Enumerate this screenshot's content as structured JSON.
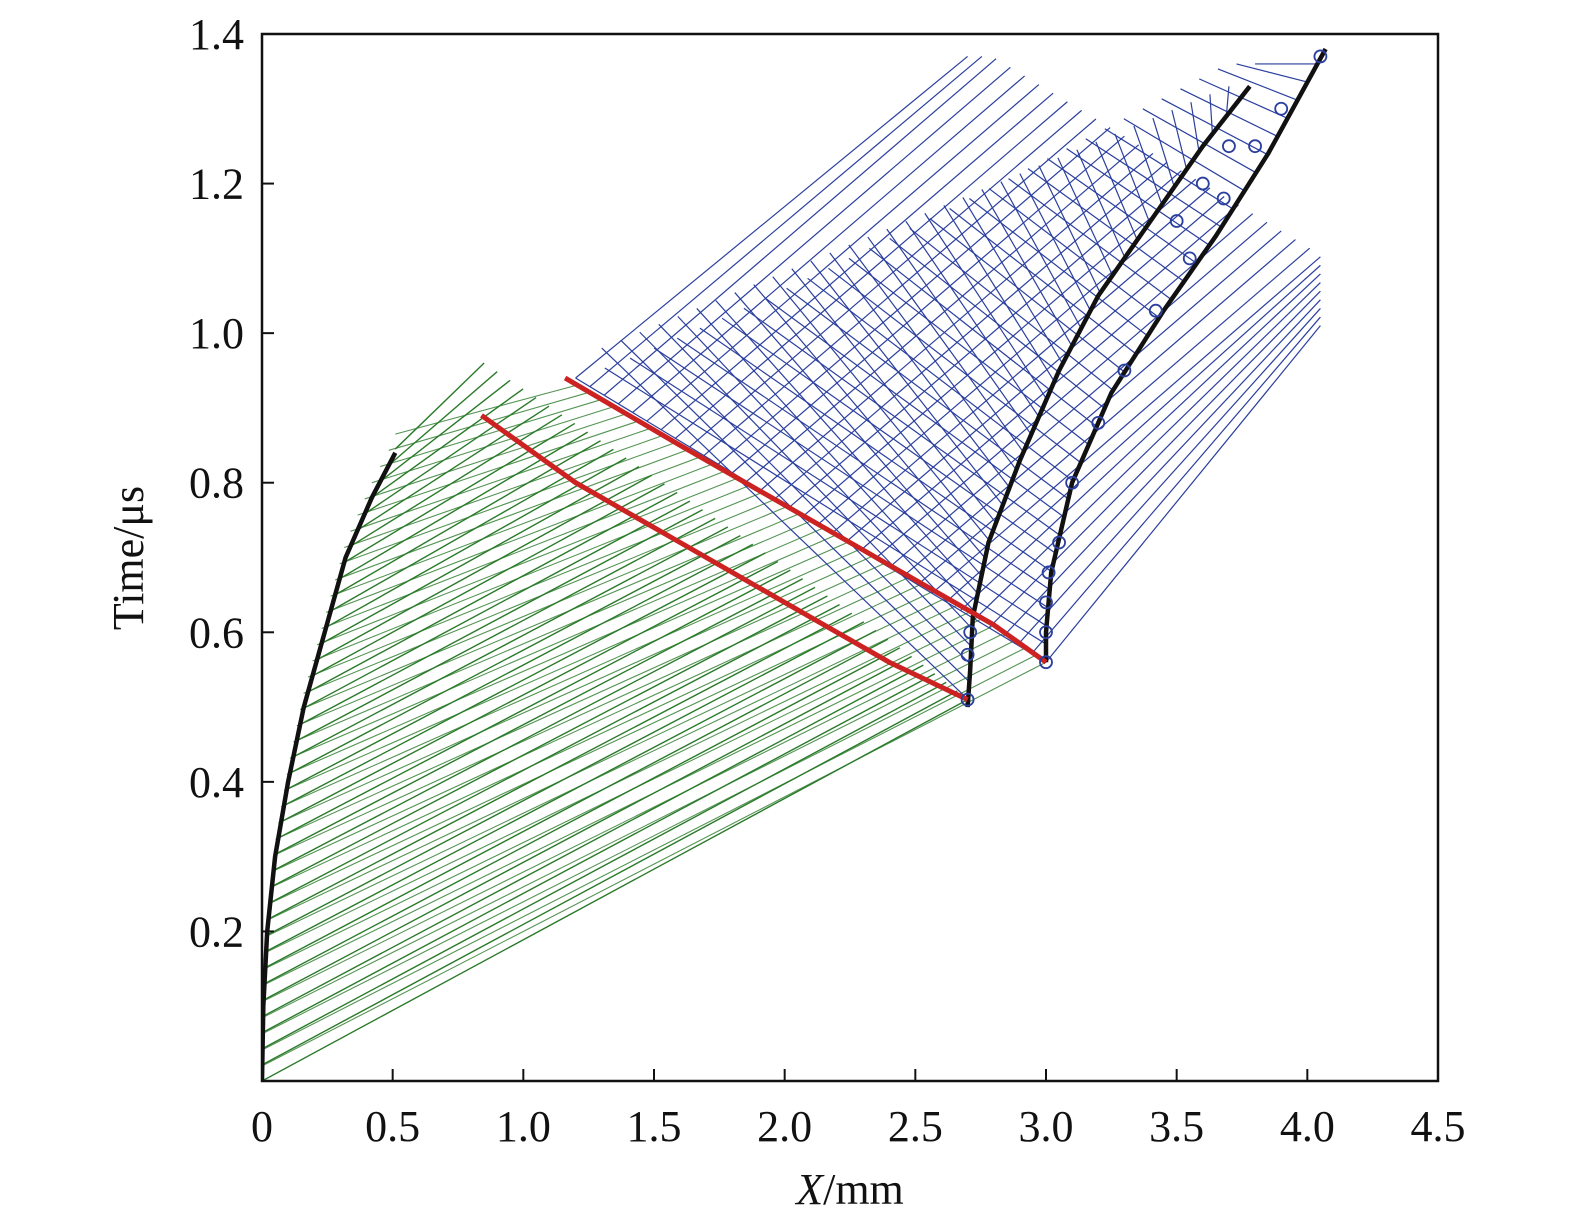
{
  "chart_data": {
    "type": "line",
    "title": "",
    "xlabel_italic": "X",
    "xlabel_rest": "/mm",
    "ylabel": "Time/μs",
    "xlim": [
      0,
      4.5
    ],
    "ylim": [
      0,
      1.4
    ],
    "xticks": [
      0,
      0.5,
      1.0,
      1.5,
      2.0,
      2.5,
      3.0,
      3.5,
      4.0,
      4.5
    ],
    "xtick_labels": [
      "0",
      "0.5",
      "1.0",
      "1.5",
      "2.0",
      "2.5",
      "3.0",
      "3.5",
      "4.0",
      "4.5"
    ],
    "yticks": [
      0.2,
      0.4,
      0.6,
      0.8,
      1.0,
      1.2,
      1.4
    ],
    "ytick_labels": [
      "0.2",
      "0.4",
      "0.6",
      "0.8",
      "1.0",
      "1.2",
      "1.4"
    ],
    "grid": false,
    "colors": {
      "boundary": "#111111",
      "interface": "#cc2222",
      "characteristics_1": "#2a7a2a",
      "characteristics_2": "#2b3f9e",
      "marker": "#2b3f9e"
    },
    "series": [
      {
        "role": "boundary",
        "points": [
          [
            0.0,
            0.0
          ],
          [
            0.005,
            0.1
          ],
          [
            0.02,
            0.2
          ],
          [
            0.05,
            0.3
          ],
          [
            0.1,
            0.4
          ],
          [
            0.16,
            0.5
          ],
          [
            0.24,
            0.6
          ],
          [
            0.32,
            0.7
          ],
          [
            0.42,
            0.78
          ],
          [
            0.51,
            0.84
          ]
        ]
      },
      {
        "role": "boundary",
        "points": [
          [
            2.7,
            0.5
          ],
          [
            2.71,
            0.55
          ],
          [
            2.72,
            0.62
          ],
          [
            2.78,
            0.72
          ],
          [
            2.9,
            0.83
          ],
          [
            3.05,
            0.95
          ],
          [
            3.2,
            1.05
          ],
          [
            3.4,
            1.15
          ],
          [
            3.6,
            1.25
          ],
          [
            3.78,
            1.33
          ]
        ]
      },
      {
        "role": "boundary",
        "points": [
          [
            3.0,
            0.56
          ],
          [
            3.0,
            0.6
          ],
          [
            3.02,
            0.68
          ],
          [
            3.1,
            0.8
          ],
          [
            3.25,
            0.92
          ],
          [
            3.45,
            1.03
          ],
          [
            3.65,
            1.13
          ],
          [
            3.85,
            1.24
          ],
          [
            4.07,
            1.38
          ]
        ]
      },
      {
        "role": "interface",
        "points": [
          [
            0.84,
            0.89
          ],
          [
            1.2,
            0.8
          ],
          [
            1.6,
            0.72
          ],
          [
            2.0,
            0.64
          ],
          [
            2.4,
            0.56
          ],
          [
            2.7,
            0.51
          ]
        ]
      },
      {
        "role": "interface",
        "points": [
          [
            1.16,
            0.94
          ],
          [
            1.6,
            0.85
          ],
          [
            2.0,
            0.77
          ],
          [
            2.4,
            0.69
          ],
          [
            2.8,
            0.61
          ],
          [
            3.0,
            0.56
          ]
        ]
      }
    ],
    "markers": [
      [
        2.7,
        0.51
      ],
      [
        2.7,
        0.57
      ],
      [
        2.71,
        0.6
      ],
      [
        3.0,
        0.56
      ],
      [
        3.0,
        0.6
      ],
      [
        3.0,
        0.64
      ],
      [
        3.01,
        0.68
      ],
      [
        3.05,
        0.72
      ],
      [
        3.1,
        0.8
      ],
      [
        3.2,
        0.88
      ],
      [
        3.3,
        0.95
      ],
      [
        3.42,
        1.03
      ],
      [
        3.55,
        1.1
      ],
      [
        3.68,
        1.18
      ],
      [
        3.8,
        1.25
      ],
      [
        3.9,
        1.3
      ],
      [
        4.05,
        1.37
      ],
      [
        3.5,
        1.15
      ],
      [
        3.6,
        1.2
      ],
      [
        3.7,
        1.25
      ]
    ]
  }
}
